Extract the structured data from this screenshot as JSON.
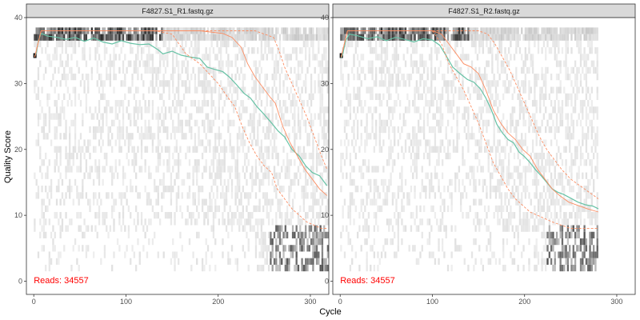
{
  "figure": {
    "xlabel": "Cycle",
    "ylabel": "Quality Score",
    "background": "#ffffff",
    "panel_border": "#333333",
    "strip_fill": "#d9d9d9",
    "colors": {
      "mean": "#66c2a5",
      "quartiles": "#fc8d62",
      "reads_label": "#ff0000",
      "heat_light": "#eeeeee",
      "heat_dark": "#222222"
    }
  },
  "chart_data": [
    {
      "type": "line",
      "title": "F4827.S1_R1.fastq.gz",
      "reads_label": "Reads:  34557",
      "xlim": [
        -8,
        320
      ],
      "ylim": [
        -2,
        40
      ],
      "x_ticks": [
        0,
        100,
        200,
        300
      ],
      "y_ticks": [
        0,
        10,
        20,
        30,
        40
      ],
      "max_cycle": 320,
      "series": [
        {
          "role": "mean",
          "style": "solid",
          "points": [
            [
              1,
              34.1
            ],
            [
              3,
              34.8
            ],
            [
              5,
              36.5
            ],
            [
              8,
              37.6
            ],
            [
              15,
              37.2
            ],
            [
              25,
              37.0
            ],
            [
              35,
              36.7
            ],
            [
              45,
              37.0
            ],
            [
              55,
              36.4
            ],
            [
              65,
              36.9
            ],
            [
              75,
              36.3
            ],
            [
              85,
              36.0
            ],
            [
              95,
              36.5
            ],
            [
              105,
              36.1
            ],
            [
              115,
              35.9
            ],
            [
              125,
              36.0
            ],
            [
              135,
              35.1
            ],
            [
              140,
              34.5
            ],
            [
              150,
              34.9
            ],
            [
              160,
              34.3
            ],
            [
              170,
              34.0
            ],
            [
              180,
              33.8
            ],
            [
              188,
              32.5
            ],
            [
              195,
              32.2
            ],
            [
              205,
              31.8
            ],
            [
              212,
              31.0
            ],
            [
              220,
              29.8
            ],
            [
              228,
              28.5
            ],
            [
              235,
              27.8
            ],
            [
              242,
              26.5
            ],
            [
              250,
              25.3
            ],
            [
              258,
              24.0
            ],
            [
              265,
              22.8
            ],
            [
              272,
              21.9
            ],
            [
              280,
              20.0
            ],
            [
              288,
              19.0
            ],
            [
              295,
              17.5
            ],
            [
              302,
              16.5
            ],
            [
              310,
              16.0
            ],
            [
              318,
              14.5
            ]
          ]
        },
        {
          "role": "median",
          "style": "solid",
          "points": [
            [
              1,
              34.0
            ],
            [
              8,
              38.0
            ],
            [
              60,
              38.0
            ],
            [
              120,
              38.0
            ],
            [
              180,
              38.0
            ],
            [
              205,
              37.6
            ],
            [
              215,
              37.0
            ],
            [
              225,
              35.5
            ],
            [
              232,
              33.0
            ],
            [
              240,
              31.0
            ],
            [
              248,
              29.5
            ],
            [
              256,
              28.0
            ],
            [
              262,
              27.0
            ],
            [
              270,
              23.5
            ],
            [
              278,
              21.0
            ],
            [
              286,
              19.0
            ],
            [
              294,
              17.0
            ],
            [
              302,
              15.5
            ],
            [
              310,
              14.0
            ],
            [
              318,
              13.0
            ]
          ]
        },
        {
          "role": "q25",
          "style": "dashed",
          "points": [
            [
              1,
              34.0
            ],
            [
              8,
              38.0
            ],
            [
              130,
              38.0
            ],
            [
              150,
              37.5
            ],
            [
              165,
              34.5
            ],
            [
              180,
              33.0
            ],
            [
              190,
              31.5
            ],
            [
              200,
              30.0
            ],
            [
              210,
              28.0
            ],
            [
              218,
              26.5
            ],
            [
              226,
              23.5
            ],
            [
              234,
              21.0
            ],
            [
              242,
              19.0
            ],
            [
              250,
              17.5
            ],
            [
              258,
              16.5
            ],
            [
              264,
              14.0
            ],
            [
              272,
              12.5
            ],
            [
              280,
              11.0
            ],
            [
              288,
              10.0
            ],
            [
              296,
              9.0
            ],
            [
              304,
              8.5
            ],
            [
              312,
              8.0
            ],
            [
              318,
              8.0
            ]
          ]
        },
        {
          "role": "q75",
          "style": "dashed",
          "points": [
            [
              1,
              34.0
            ],
            [
              8,
              38.0
            ],
            [
              240,
              38.0
            ],
            [
              250,
              37.5
            ],
            [
              260,
              37.0
            ],
            [
              266,
              35.0
            ],
            [
              272,
              32.5
            ],
            [
              280,
              30.0
            ],
            [
              288,
              27.5
            ],
            [
              296,
              25.0
            ],
            [
              304,
              22.0
            ],
            [
              312,
              19.0
            ],
            [
              318,
              17.0
            ]
          ]
        }
      ]
    },
    {
      "type": "line",
      "title": "F4827.S1_R2.fastq.gz",
      "reads_label": "Reads:  34557",
      "xlim": [
        -8,
        320
      ],
      "ylim": [
        -2,
        40
      ],
      "x_ticks": [
        0,
        100,
        200,
        300
      ],
      "y_ticks": [
        0,
        10,
        20,
        30,
        40
      ],
      "max_cycle": 280,
      "series": [
        {
          "role": "mean",
          "style": "solid",
          "points": [
            [
              1,
              33.9
            ],
            [
              3,
              34.6
            ],
            [
              6,
              36.5
            ],
            [
              10,
              37.5
            ],
            [
              20,
              37.2
            ],
            [
              30,
              36.8
            ],
            [
              40,
              37.1
            ],
            [
              50,
              36.5
            ],
            [
              60,
              37.0
            ],
            [
              70,
              36.7
            ],
            [
              80,
              36.3
            ],
            [
              90,
              36.8
            ],
            [
              100,
              36.6
            ],
            [
              108,
              35.8
            ],
            [
              115,
              34.2
            ],
            [
              122,
              32.5
            ],
            [
              130,
              31.5
            ],
            [
              138,
              30.6
            ],
            [
              145,
              30.2
            ],
            [
              152,
              29.2
            ],
            [
              158,
              27.8
            ],
            [
              164,
              26.0
            ],
            [
              170,
              23.8
            ],
            [
              176,
              22.5
            ],
            [
              182,
              21.5
            ],
            [
              188,
              21.0
            ],
            [
              194,
              19.6
            ],
            [
              200,
              18.9
            ],
            [
              206,
              18.0
            ],
            [
              212,
              16.9
            ],
            [
              218,
              16.0
            ],
            [
              224,
              15.0
            ],
            [
              230,
              14.0
            ],
            [
              236,
              13.5
            ],
            [
              242,
              13.2
            ],
            [
              250,
              12.6
            ],
            [
              258,
              12.0
            ],
            [
              266,
              11.6
            ],
            [
              274,
              11.4
            ],
            [
              280,
              11.0
            ]
          ]
        },
        {
          "role": "median",
          "style": "solid",
          "points": [
            [
              1,
              34.0
            ],
            [
              8,
              38.0
            ],
            [
              100,
              38.0
            ],
            [
              110,
              37.5
            ],
            [
              118,
              36.0
            ],
            [
              126,
              34.5
            ],
            [
              134,
              33.0
            ],
            [
              142,
              32.5
            ],
            [
              150,
              31.5
            ],
            [
              158,
              29.0
            ],
            [
              166,
              26.0
            ],
            [
              174,
              24.0
            ],
            [
              182,
              22.5
            ],
            [
              190,
              21.5
            ],
            [
              198,
              20.0
            ],
            [
              206,
              19.0
            ],
            [
              214,
              17.0
            ],
            [
              222,
              15.5
            ],
            [
              230,
              14.0
            ],
            [
              238,
              13.0
            ],
            [
              248,
              12.0
            ],
            [
              258,
              11.5
            ],
            [
              268,
              11.0
            ],
            [
              280,
              10.5
            ]
          ]
        },
        {
          "role": "q25",
          "style": "dashed",
          "points": [
            [
              1,
              34.0
            ],
            [
              8,
              38.0
            ],
            [
              100,
              38.0
            ],
            [
              110,
              36.0
            ],
            [
              118,
              33.0
            ],
            [
              126,
              31.0
            ],
            [
              134,
              29.0
            ],
            [
              142,
              26.5
            ],
            [
              150,
              24.0
            ],
            [
              158,
              21.0
            ],
            [
              166,
              18.0
            ],
            [
              174,
              16.0
            ],
            [
              182,
              14.0
            ],
            [
              190,
              12.5
            ],
            [
              198,
              11.5
            ],
            [
              206,
              10.5
            ],
            [
              214,
              10.0
            ],
            [
              222,
              9.5
            ],
            [
              230,
              9.0
            ],
            [
              240,
              8.5
            ],
            [
              250,
              8.0
            ],
            [
              260,
              8.0
            ],
            [
              270,
              8.0
            ],
            [
              280,
              8.0
            ]
          ]
        },
        {
          "role": "q75",
          "style": "dashed",
          "points": [
            [
              1,
              34.0
            ],
            [
              8,
              38.0
            ],
            [
              150,
              38.0
            ],
            [
              160,
              37.5
            ],
            [
              168,
              36.0
            ],
            [
              176,
              34.0
            ],
            [
              184,
              32.0
            ],
            [
              192,
              29.5
            ],
            [
              200,
              27.0
            ],
            [
              208,
              24.5
            ],
            [
              216,
              22.0
            ],
            [
              224,
              20.0
            ],
            [
              232,
              18.5
            ],
            [
              240,
              17.0
            ],
            [
              250,
              15.5
            ],
            [
              260,
              14.5
            ],
            [
              270,
              13.5
            ],
            [
              280,
              12.5
            ]
          ]
        }
      ]
    }
  ]
}
